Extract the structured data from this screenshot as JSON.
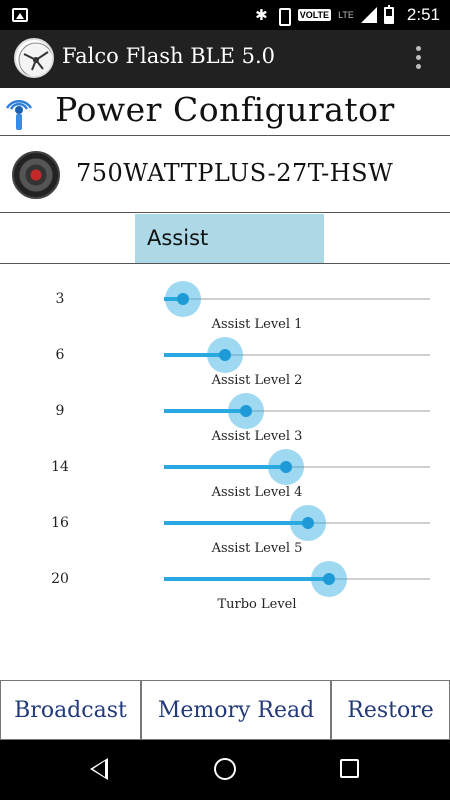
{
  "status_bar": {
    "time": "2:51",
    "volte_label": "VOLTE",
    "lte_label": "LTE",
    "icons": [
      "image-icon",
      "bluetooth-icon",
      "vibrate-icon",
      "signal-icon",
      "battery-icon"
    ]
  },
  "app_bar": {
    "title": "Falco Flash BLE 5.0",
    "menu_icon": "overflow-menu-icon"
  },
  "header": {
    "title": "Power Configurator",
    "icon": "bluetooth-connect-icon"
  },
  "motor": {
    "name": "750WATTPLUS-27T-HSW",
    "icon": "motor-icon"
  },
  "tab": {
    "label": "Assist",
    "color": "#add8e6"
  },
  "sliders": [
    {
      "value": "3",
      "label": "Assist Level 1",
      "fraction": 0.07
    },
    {
      "value": "6",
      "label": "Assist Level 2",
      "fraction": 0.23
    },
    {
      "value": "9",
      "label": "Assist Level 3",
      "fraction": 0.31
    },
    {
      "value": "14",
      "label": "Assist Level 4",
      "fraction": 0.46
    },
    {
      "value": "16",
      "label": "Assist Level 5",
      "fraction": 0.54
    },
    {
      "value": "20",
      "label": "Turbo Level",
      "fraction": 0.62
    }
  ],
  "buttons": {
    "broadcast": "Broadcast",
    "memory_read": "Memory Read",
    "restore": "Restore"
  },
  "colors": {
    "accent": "#29a9e1",
    "button_text": "#223a7a",
    "app_bar": "#212121"
  }
}
